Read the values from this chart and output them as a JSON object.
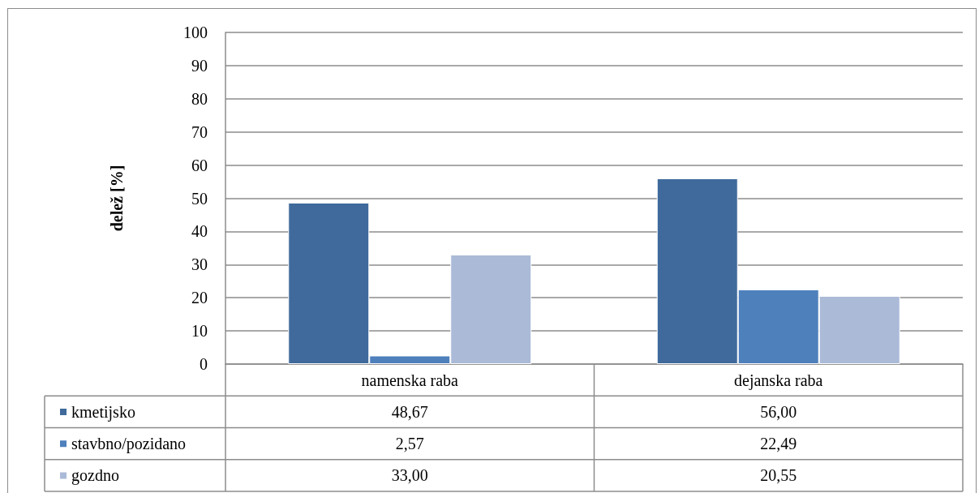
{
  "chart_data": {
    "type": "bar",
    "categories": [
      "namenska raba",
      "dejanska raba"
    ],
    "ylabel": "delež [%]",
    "series": [
      {
        "name": "kmetijsko",
        "color": "#3f6a9b",
        "values": [
          48.67,
          56.0
        ],
        "value_labels": [
          "48,67",
          "56,00"
        ]
      },
      {
        "name": "stavbno/pozidano",
        "color": "#4e80bc",
        "values": [
          2.57,
          22.49
        ],
        "value_labels": [
          "2,57",
          "22,49"
        ]
      },
      {
        "name": "gozdno",
        "color": "#aabad7",
        "values": [
          33.0,
          20.55
        ],
        "value_labels": [
          "33,00",
          "20,55"
        ]
      }
    ],
    "ylim": [
      0,
      100
    ],
    "yticks": [
      0,
      10,
      20,
      30,
      40,
      50,
      60,
      70,
      80,
      90,
      100
    ],
    "grid": "y",
    "legend": "bottom"
  }
}
